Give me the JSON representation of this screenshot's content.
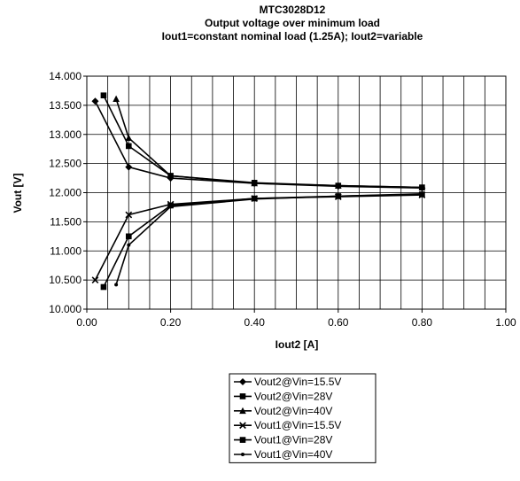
{
  "chart_data": {
    "type": "line",
    "title": "MTC3028D12",
    "subtitle_lines": [
      "Output voltage over minimum load",
      "Iout1=constant nominal load (1.25A); Iout2=variable"
    ],
    "xlabel": "Iout2 [A]",
    "ylabel": "Vout [V]",
    "xlim": [
      0.0,
      1.0
    ],
    "ylim": [
      10.0,
      14.0
    ],
    "x_ticks": [
      0.0,
      0.2,
      0.4,
      0.6,
      0.8,
      1.0
    ],
    "x_tick_labels": [
      "0.00",
      "0.20",
      "0.40",
      "0.60",
      "0.80",
      "1.00"
    ],
    "y_ticks": [
      10.0,
      10.5,
      11.0,
      11.5,
      12.0,
      12.5,
      13.0,
      13.5,
      14.0
    ],
    "y_tick_labels": [
      "10.000",
      "10.500",
      "11.000",
      "11.500",
      "12.000",
      "12.500",
      "13.000",
      "13.500",
      "14.000"
    ],
    "grid": true,
    "legend_position": "bottom",
    "series": [
      {
        "name": "Vout2@Vin=15.5V",
        "marker": "diamond",
        "x": [
          0.02,
          0.1,
          0.2,
          0.4,
          0.6,
          0.8
        ],
        "y": [
          13.57,
          12.44,
          12.25,
          12.16,
          12.11,
          12.08
        ]
      },
      {
        "name": "Vout2@Vin=28V",
        "marker": "square",
        "x": [
          0.04,
          0.1,
          0.2,
          0.4,
          0.6,
          0.8
        ],
        "y": [
          13.67,
          12.8,
          12.29,
          12.17,
          12.12,
          12.09
        ]
      },
      {
        "name": "Vout2@Vin=40V",
        "marker": "triangle",
        "x": [
          0.07,
          0.1,
          0.2,
          0.4,
          0.6,
          0.8
        ],
        "y": [
          13.61,
          12.94,
          12.29,
          12.16,
          12.12,
          12.09
        ]
      },
      {
        "name": "Vout1@Vin=15.5V",
        "marker": "x",
        "x": [
          0.02,
          0.1,
          0.2,
          0.4,
          0.6,
          0.8
        ],
        "y": [
          10.5,
          11.62,
          11.8,
          11.9,
          11.93,
          11.96
        ]
      },
      {
        "name": "Vout1@Vin=28V",
        "marker": "square",
        "x": [
          0.04,
          0.1,
          0.2,
          0.4,
          0.6,
          0.8
        ],
        "y": [
          10.38,
          11.25,
          11.78,
          11.9,
          11.94,
          11.97
        ]
      },
      {
        "name": "Vout1@Vin=40V",
        "marker": "dot",
        "x": [
          0.07,
          0.1,
          0.2,
          0.4,
          0.6,
          0.8
        ],
        "y": [
          10.42,
          11.1,
          11.76,
          11.89,
          11.94,
          11.98
        ]
      }
    ]
  }
}
